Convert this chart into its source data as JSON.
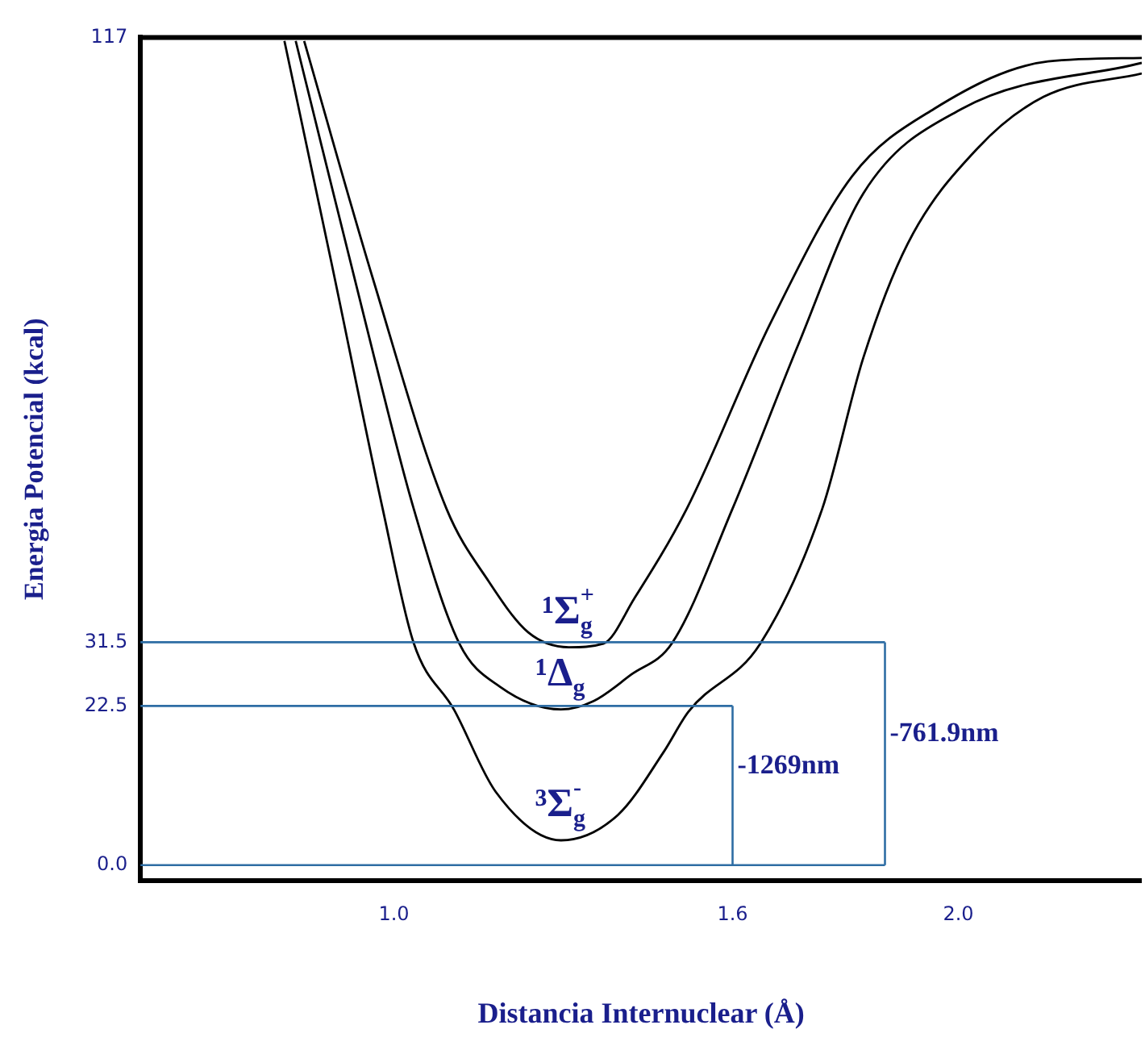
{
  "chart_data": {
    "type": "line",
    "xlabel": "Distancia Internuclear (Å)",
    "ylabel": "Energia Potencial (kcal)",
    "xlim": [
      0.551,
      2.325
    ],
    "xticks": [
      {
        "value": 1,
        "label": "1.0"
      },
      1.6,
      {
        "value": 2,
        "label": "2.0"
      }
    ],
    "ylim": [
      -2.2,
      117
    ],
    "yticks": [
      {
        "value": 0,
        "label": "0.0"
      },
      22.5,
      31.5,
      117
    ],
    "grid": false,
    "legend": false,
    "marker": "none",
    "line_style": "solid",
    "series": [
      {
        "name": "¹Σ$_{g}$$^{+}$",
        "color": "#000000",
        "x": [
          0.841,
          0.962,
          1.093,
          1.168,
          1.238,
          1.31,
          1.371,
          1.426,
          1.519,
          1.667,
          1.812,
          1.957,
          2.159,
          2.325
        ],
        "values": [
          116.5,
          83.1,
          50.4,
          40.1,
          32.9,
          30.8,
          31.3,
          37.7,
          50.4,
          76.6,
          97.4,
          106.9,
          113.6,
          114.1
        ]
      },
      {
        "name": "¹Δ$_{g}$",
        "color": "#000000",
        "x": [
          0.826,
          0.965,
          1.035,
          1.116,
          1.188,
          1.296,
          1.354,
          1.42,
          1.493,
          1.6,
          1.716,
          1.832,
          2.006,
          2.325
        ],
        "values": [
          116.5,
          71.8,
          50.4,
          31.3,
          25.2,
          22.0,
          23.2,
          26.9,
          31.4,
          50.4,
          73.5,
          95.0,
          106.9,
          113.4
        ]
      },
      {
        "name": "³Σ$_{g}$$^{-}$",
        "color": "#000000",
        "x": [
          0.806,
          0.89,
          0.98,
          1.035,
          1.107,
          1.18,
          1.296,
          1.397,
          1.478,
          1.522,
          1.649,
          1.759,
          1.832,
          1.91,
          2.035,
          2.151,
          2.325
        ],
        "values": [
          116.5,
          84.9,
          50.4,
          31.4,
          21.9,
          10.4,
          3.5,
          7.1,
          16.0,
          21.7,
          31.3,
          50.4,
          71.8,
          87.8,
          101.4,
          108.6,
          111.9
        ]
      }
    ],
    "ref_lines": [
      {
        "axis": "y",
        "value": 22.5,
        "color": "#2e6da4"
      },
      {
        "axis": "y",
        "value": 31.5,
        "color": "#2e6da4"
      },
      {
        "axis": "y",
        "value": 0,
        "color": "#2e6da4"
      },
      {
        "axis": "x",
        "value": 1.6,
        "label": "-1269nm",
        "color": "#2e6da4"
      },
      {
        "axis": "x",
        "value": 1.87,
        "label": "-761.9nm",
        "color": "#2e6da4"
      }
    ]
  }
}
